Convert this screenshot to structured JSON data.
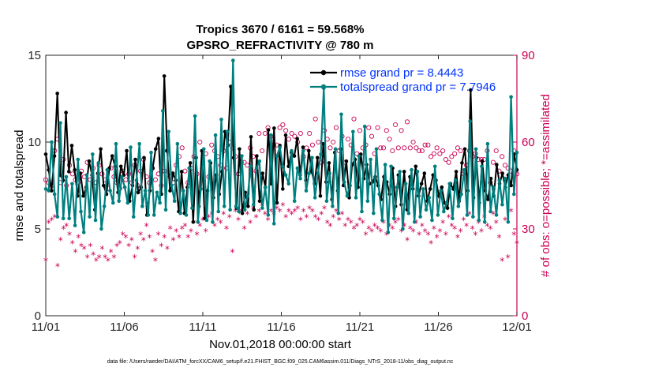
{
  "chart_data": {
    "type": "line",
    "title": "Tropics 3670 / 6161 = 59.568%",
    "subtitle": "GPSRO_REFRACTIVITY @ 780 m",
    "xlabel": "Nov.01,2018 00:00:00 start",
    "ylabel_left": "rmse and totalspread",
    "ylabel_right": "# of obs: o=possible; *=assimilated",
    "footer": "data file: /Users/raeder/DAI/ATM_forcXX/CAM6_setup/f.e21.FHIST_BGC.f09_025.CAM6assim.011/Diags_NTrS_2018-11/obs_diag_output.nc",
    "x_ticks": [
      "11/01",
      "11/06",
      "11/11",
      "11/16",
      "11/21",
      "11/26",
      "12/01"
    ],
    "x_range": [
      0,
      30
    ],
    "ylim_left": [
      0,
      15
    ],
    "y_ticks_left": [
      "0",
      "5",
      "10",
      "15"
    ],
    "ylim_right": [
      0,
      90
    ],
    "y_ticks_right": [
      "0",
      "30",
      "60",
      "90"
    ],
    "legend": [
      {
        "label": "rmse grand pr = 8.4443",
        "color": "#000000"
      },
      {
        "label": "totalspread grand pr = 7.7946",
        "color": "#007f7f"
      }
    ],
    "colors": {
      "rmse": "#000000",
      "spread": "#007f7f",
      "obs": "#cc0055",
      "legend_text": "#0033ff"
    },
    "series": [
      {
        "name": "rmse",
        "axis": "left",
        "values": [
          9.3,
          8.4,
          7.2,
          9.2,
          12.8,
          8.1,
          7.8,
          11.7,
          8.3,
          9.8,
          8.4,
          6.9,
          8.2,
          6.9,
          7.4,
          8.9,
          8.1,
          6.1,
          8.2,
          9.6,
          7.5,
          7.0,
          8.5,
          9.2,
          8.6,
          7.1,
          8.6,
          8.1,
          9.5,
          6.6,
          7.5,
          9.0,
          7.1,
          7.4,
          9.1,
          5.8,
          7.2,
          8.5,
          9.6,
          10.2,
          7.0,
          13.8,
          9.5,
          7.2,
          8.2,
          7.8,
          6.0,
          8.3,
          5.9,
          7.4,
          8.8,
          5.4,
          9.1,
          6.3,
          9.5,
          5.6,
          7.2,
          8.8,
          6.8,
          8.1,
          7.0,
          8.3,
          10.6,
          9.8,
          13.2,
          9.1,
          6.2,
          9.6,
          5.9,
          7.1,
          6.3,
          10.3,
          6.1,
          9.2,
          6.6,
          8.2,
          7.4,
          10.7,
          7.6,
          10.8,
          6.5,
          9.8,
          7.3,
          10.4,
          8.6,
          9.4,
          9.2,
          10.2,
          8.1,
          9.7,
          7.8,
          9.5,
          8.3,
          7.6,
          9.1,
          6.9,
          9.9,
          7.7,
          8.8,
          6.7,
          9.4,
          7.2,
          9.6,
          7.5,
          8.9,
          6.8,
          8.7,
          9.0,
          7.4,
          9.3,
          7.9,
          8.7,
          7.6,
          7.7,
          8.0,
          7.5,
          6.7,
          8.0,
          7.7,
          7.0,
          8.5,
          6.3,
          8.1,
          6.4,
          8.3,
          6.1,
          8.0,
          7.3,
          8.6,
          6.9,
          7.6,
          8.2,
          6.6,
          7.3,
          8.1,
          7.8,
          6.9,
          7.4,
          6.5,
          6.2,
          7.6,
          7.3,
          8.3,
          6.6,
          8.8,
          9.6,
          7.2,
          13.0,
          6.8,
          9.1,
          6.5,
          8.9,
          7.2,
          6.7,
          7.9,
          6.9,
          8.7,
          7.6,
          8.2,
          7.4,
          8.1,
          7.5,
          9.3,
          8.4
        ]
      },
      {
        "name": "totalspread",
        "axis": "left",
        "values": [
          7.3,
          7.2,
          10.0,
          7.0,
          5.7,
          11.1,
          5.6,
          8.0,
          5.6,
          7.6,
          5.2,
          9.0,
          6.0,
          4.8,
          8.1,
          5.7,
          9.3,
          5.5,
          8.8,
          5.0,
          6.3,
          8.4,
          7.2,
          6.5,
          9.9,
          6.6,
          8.0,
          7.4,
          6.5,
          9.7,
          5.7,
          7.8,
          9.9,
          6.3,
          7.2,
          5.8,
          9.4,
          5.8,
          7.1,
          6.5,
          11.8,
          6.1,
          10.6,
          7.5,
          6.6,
          9.9,
          5.9,
          7.2,
          5.8,
          8.5,
          6.2,
          11.5,
          5.4,
          7.3,
          9.6,
          5.5,
          8.9,
          5.4,
          10.4,
          6.0,
          11.3,
          6.3,
          10.6,
          6.1,
          14.7,
          6.3,
          6.0,
          9.2,
          6.1,
          6.9,
          8.6,
          6.4,
          8.5,
          8.9,
          6.2,
          7.4,
          5.8,
          10.4,
          5.3,
          9.2,
          9.7,
          8.6,
          8.1,
          7.6,
          9.5,
          6.6,
          8.5,
          7.9,
          9.5,
          7.2,
          8.2,
          9.1,
          6.8,
          8.2,
          9.3,
          13.1,
          6.6,
          8.2,
          6.3,
          9.6,
          5.9,
          11.6,
          7.7,
          6.9,
          7.5,
          10.6,
          6.8,
          9.2,
          6.0,
          10.9,
          6.6,
          9.0,
          5.9,
          9.6,
          7.0,
          5.5,
          8.7,
          4.8,
          8.6,
          5.6,
          7.4,
          8.3,
          5.0,
          7.6,
          5.9,
          8.4,
          5.4,
          8.3,
          5.7,
          7.3,
          6.1,
          6.8,
          5.5,
          8.6,
          5.8,
          7.2,
          6.0,
          6.5,
          7.6,
          5.6,
          7.8,
          6.3,
          7.0,
          8.4,
          5.8,
          11.2,
          5.7,
          9.6,
          5.5,
          8.6,
          5.4,
          9.9,
          6.0,
          7.4,
          5.8,
          7.8,
          6.4,
          7.9,
          5.4,
          12.6,
          7.0,
          9.4
        ]
      },
      {
        "name": "possible",
        "axis": "right",
        "marker": "o",
        "values": [
          47,
          46,
          45,
          57,
          61,
          46,
          54,
          45,
          52,
          49,
          47,
          46,
          50,
          48,
          53,
          47,
          51,
          46,
          52,
          49,
          47,
          44,
          51,
          48,
          46,
          44,
          50,
          47,
          49,
          46,
          52,
          45,
          50,
          54,
          48,
          46,
          51,
          47,
          49,
          45,
          50,
          57,
          48,
          46,
          52,
          55,
          58,
          50,
          46,
          51,
          55,
          49,
          60,
          53,
          56,
          48,
          59,
          57,
          55,
          52,
          57,
          51,
          60,
          58,
          55,
          49,
          53,
          53,
          52,
          58,
          55,
          50,
          63,
          57,
          63,
          65,
          62,
          59,
          59,
          65,
          66,
          64,
          61,
          63,
          62,
          60,
          63,
          55,
          58,
          63,
          59,
          68,
          60,
          53,
          64,
          61,
          58,
          60,
          65,
          57,
          62,
          53,
          61,
          59,
          68,
          56,
          64,
          58,
          59,
          65,
          62,
          56,
          65,
          58,
          58,
          64,
          61,
          57,
          66,
          58,
          64,
          58,
          67,
          58,
          60,
          58,
          57,
          57,
          59,
          59,
          55,
          56,
          58,
          56,
          57,
          54,
          53,
          55,
          56,
          58,
          57,
          49,
          52,
          57,
          55,
          56,
          54,
          54,
          54,
          57,
          46,
          53,
          57,
          50,
          55,
          52,
          51,
          50,
          57,
          49
        ]
      },
      {
        "name": "assimilated",
        "axis": "right",
        "marker": "*",
        "values": [
          19,
          32,
          33,
          34,
          17,
          26,
          30,
          31,
          28,
          25,
          22,
          27,
          24,
          23,
          20,
          24,
          21,
          19,
          20,
          23,
          20,
          19,
          22,
          20,
          24,
          25,
          28,
          27,
          24,
          26,
          20,
          23,
          28,
          26,
          31,
          27,
          22,
          19,
          28,
          24,
          27,
          23,
          30,
          26,
          29,
          27,
          30,
          31,
          27,
          29,
          32,
          28,
          31,
          33,
          29,
          34,
          35,
          31,
          33,
          32,
          35,
          30,
          34,
          22,
          36,
          33,
          36,
          30,
          35,
          32,
          37,
          34,
          36,
          38,
          35,
          33,
          36,
          35,
          37,
          36,
          38,
          34,
          36,
          35,
          36,
          37,
          33,
          36,
          34,
          37,
          36,
          34,
          33,
          35,
          37,
          32,
          31,
          34,
          36,
          33,
          35,
          31,
          33,
          32,
          30,
          31,
          33,
          32,
          28,
          30,
          29,
          31,
          30,
          29,
          32,
          28,
          31,
          30,
          32,
          33,
          29,
          31,
          26,
          30,
          29,
          32,
          28,
          31,
          29,
          28,
          25,
          30,
          27,
          29,
          32,
          28,
          34,
          31,
          30,
          27,
          29,
          33,
          31,
          35,
          30,
          28,
          32,
          29,
          34,
          31,
          30,
          35,
          32,
          27,
          19,
          33,
          20,
          36,
          28,
          25
        ]
      }
    ]
  }
}
